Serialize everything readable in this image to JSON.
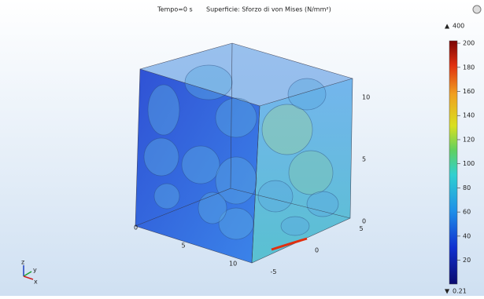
{
  "header": {
    "time": "Tempo=0 s",
    "title": "Superficie: Sforzo di von Mises (N/mm²)"
  },
  "colorbar": {
    "max": 400,
    "min": 0.21,
    "lim": [
      0.21,
      202
    ],
    "ticks": [
      20,
      40,
      60,
      80,
      100,
      120,
      140,
      160,
      180,
      200
    ]
  },
  "axes": {
    "z_ticks": [
      10,
      5,
      0
    ],
    "x_ticks": [
      0,
      5,
      10
    ],
    "y_ticks": [
      5,
      0,
      -5
    ]
  },
  "triad": {
    "z": "z",
    "y": "y",
    "x": "x"
  }
}
